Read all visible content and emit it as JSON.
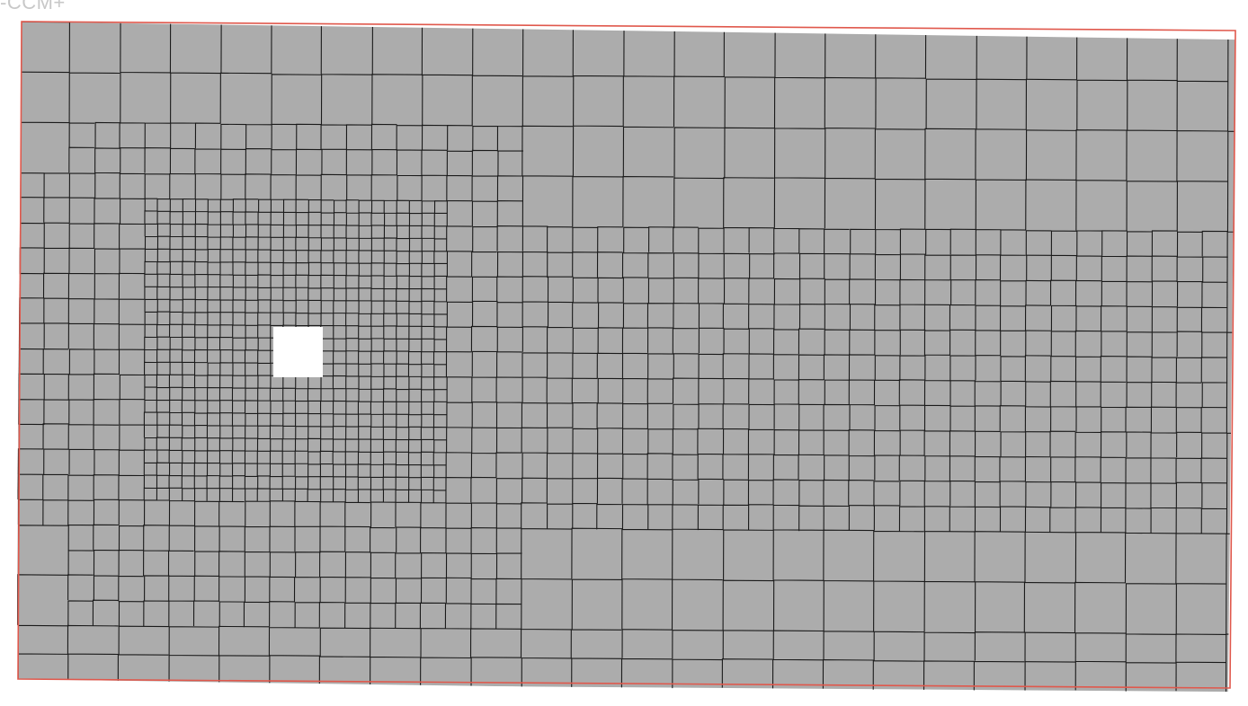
{
  "app": {
    "label": "-CCM+"
  },
  "viewport": {
    "mesh_fill_color": "#acacac",
    "mesh_line_color": "#1a1a1a",
    "boundary_color": "#e0584c",
    "obstacle_color": "#ffffff",
    "background_color": "#ffffff"
  }
}
